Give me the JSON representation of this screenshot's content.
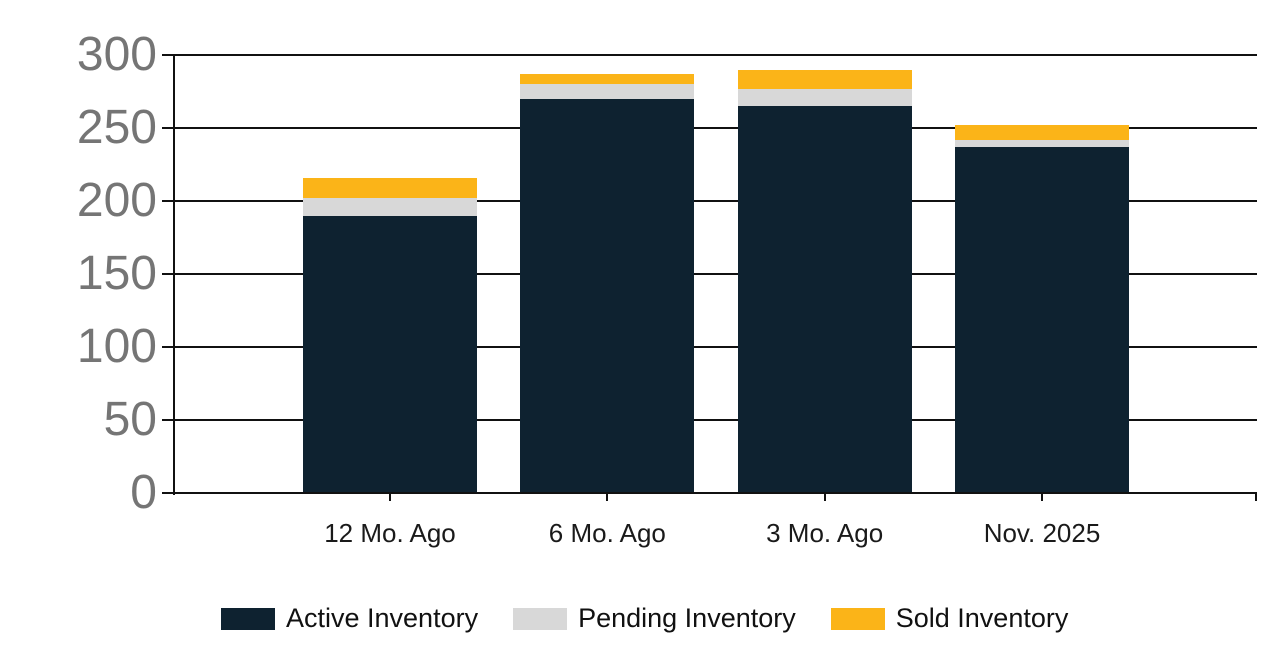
{
  "chart_data": {
    "type": "bar",
    "stacked": true,
    "title": "",
    "xlabel": "",
    "ylabel": "",
    "categories": [
      "12 Mo. Ago",
      "6 Mo. Ago",
      "3 Mo. Ago",
      "Nov. 2025"
    ],
    "series": [
      {
        "name": "Active Inventory",
        "color": "#0e2230",
        "values": [
          190,
          270,
          265,
          237
        ]
      },
      {
        "name": "Pending Inventory",
        "color": "#d8d8d8",
        "values": [
          12,
          10,
          12,
          5
        ]
      },
      {
        "name": "Sold Inventory",
        "color": "#fbb418",
        "values": [
          14,
          7,
          13,
          10
        ]
      }
    ],
    "stack_totals": [
      216,
      287,
      290,
      252
    ],
    "ylim": [
      0,
      300
    ],
    "yticks": [
      0,
      50,
      100,
      150,
      200,
      250,
      300
    ],
    "grid": "horizontal",
    "legend_position": "bottom"
  },
  "colors": {
    "background": "#ffffff",
    "axis_and_grid": "#111111",
    "y_tick_label": "#757575",
    "x_tick_label": "#1a1a1a",
    "active_inventory": "#0e2230",
    "pending_inventory": "#d8d8d8",
    "sold_inventory": "#fbb418"
  }
}
